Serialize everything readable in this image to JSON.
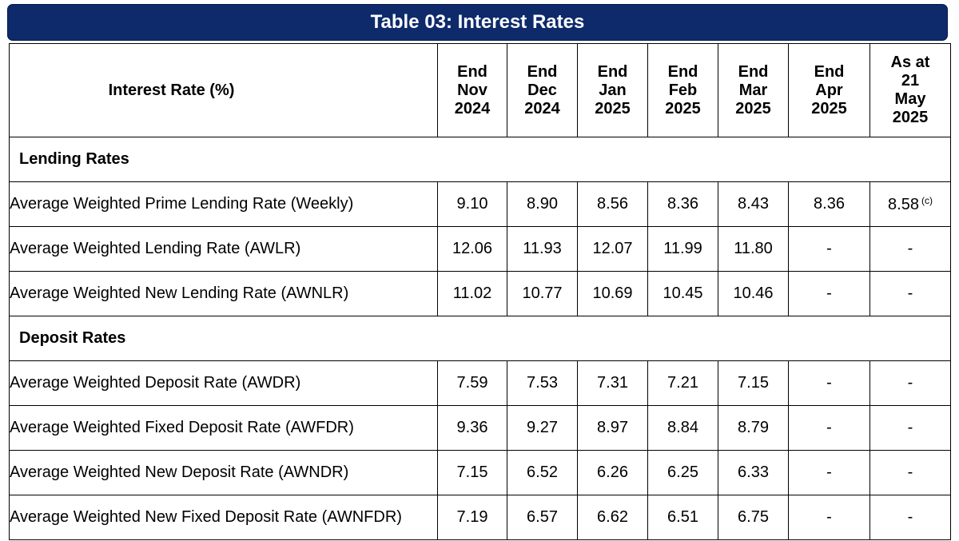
{
  "title": "Table 03: Interest Rates",
  "header": {
    "first": "Interest Rate (%)",
    "columns": [
      [
        "End",
        "Nov",
        "2024"
      ],
      [
        "End",
        "Dec",
        "2024"
      ],
      [
        "End",
        "Jan",
        "2025"
      ],
      [
        "End",
        "Feb",
        "2025"
      ],
      [
        "End",
        "Mar",
        "2025"
      ],
      [
        "End",
        "Apr",
        "2025"
      ],
      [
        "As at",
        "21",
        "May",
        "2025"
      ]
    ]
  },
  "sections": [
    {
      "name": "Lending Rates",
      "rows": [
        {
          "label": "Average Weighted Prime Lending Rate (Weekly)",
          "values": [
            "9.10",
            "8.90",
            "8.56",
            "8.36",
            "8.43",
            "8.36",
            "8.58"
          ],
          "note": "(c)"
        },
        {
          "label": "Average Weighted Lending Rate (AWLR)",
          "values": [
            "12.06",
            "11.93",
            "12.07",
            "11.99",
            "11.80",
            "-",
            "-"
          ]
        },
        {
          "label": "Average Weighted New Lending Rate (AWNLR)",
          "values": [
            "11.02",
            "10.77",
            "10.69",
            "10.45",
            "10.46",
            "-",
            "-"
          ]
        }
      ]
    },
    {
      "name": "Deposit Rates",
      "rows": [
        {
          "label": "Average Weighted Deposit Rate (AWDR)",
          "values": [
            "7.59",
            "7.53",
            "7.31",
            "7.21",
            "7.15",
            "-",
            "-"
          ]
        },
        {
          "label": "Average Weighted Fixed Deposit Rate (AWFDR)",
          "values": [
            "9.36",
            "9.27",
            "8.97",
            "8.84",
            "8.79",
            "-",
            "-"
          ]
        },
        {
          "label": "Average Weighted New Deposit Rate (AWNDR)",
          "values": [
            "7.15",
            "6.52",
            "6.26",
            "6.25",
            "6.33",
            "-",
            "-"
          ]
        },
        {
          "label": "Average Weighted New Fixed Deposit Rate (AWNFDR)",
          "values": [
            "7.19",
            "6.57",
            "6.62",
            "6.51",
            "6.75",
            "-",
            "-"
          ]
        }
      ]
    }
  ]
}
